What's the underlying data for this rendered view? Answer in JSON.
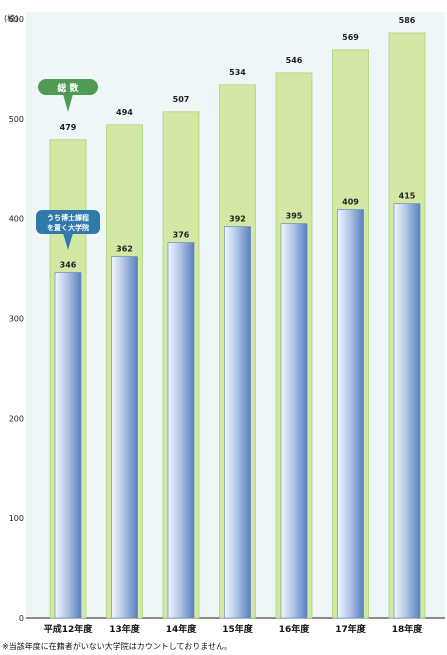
{
  "chart_data": {
    "type": "bar",
    "categories": [
      "平成12年度",
      "13年度",
      "14年度",
      "15年度",
      "16年度",
      "17年度",
      "18年度"
    ],
    "series": [
      {
        "name": "総 数",
        "values": [
          479,
          494,
          507,
          534,
          546,
          569,
          586
        ]
      },
      {
        "name": "うち博士課程を置く大学院",
        "values": [
          346,
          362,
          376,
          392,
          395,
          409,
          415
        ]
      }
    ],
    "ylabel": "(校)",
    "ylim": [
      0,
      600
    ],
    "yticks": [
      0,
      100,
      200,
      300,
      400,
      500,
      600
    ],
    "grid": false,
    "legend": "callouts",
    "colors": {
      "panel_bg": "#eef6f8",
      "total_fill": "#d3e8a4",
      "total_stroke": "#9ccb62",
      "doctoral_light": "#f2f7ff",
      "doctoral_dark": "#5a7fbf",
      "total_callout": "#4f9a55",
      "doctoral_callout": "#2f7aaa"
    }
  },
  "footnote": "※当該年度に在籍者がいない大学院はカウントしておりません。"
}
